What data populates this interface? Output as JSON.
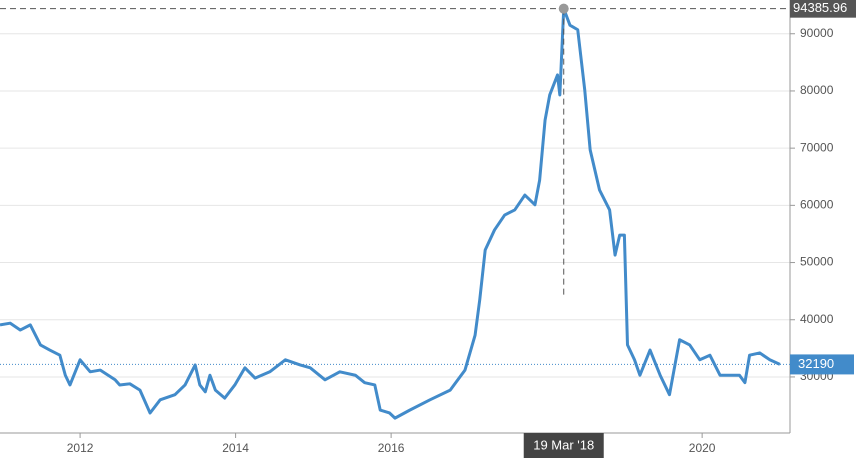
{
  "chart_data": {
    "type": "line",
    "crosshair_label": "19 Mar '18",
    "x": [
      2010.97,
      2011.1,
      2011.23,
      2011.36,
      2011.49,
      2011.61,
      2011.74,
      2011.81,
      2011.87,
      2012.0,
      2012.13,
      2012.26,
      2012.45,
      2012.51,
      2012.64,
      2012.77,
      2012.9,
      2013.03,
      2013.22,
      2013.35,
      2013.48,
      2013.54,
      2013.61,
      2013.67,
      2013.74,
      2013.86,
      2013.99,
      2014.12,
      2014.25,
      2014.44,
      2014.64,
      2014.83,
      2014.96,
      2015.15,
      2015.34,
      2015.54,
      2015.66,
      2015.79,
      2015.86,
      2015.98,
      2016.05,
      2016.24,
      2016.5,
      2016.76,
      2016.95,
      2017.08,
      2017.14,
      2017.21,
      2017.33,
      2017.46,
      2017.59,
      2017.72,
      2017.85,
      2017.91,
      2017.98,
      2018.04,
      2018.14,
      2018.17,
      2018.22,
      2018.3,
      2018.4,
      2018.49,
      2018.56,
      2018.68,
      2018.81,
      2018.88,
      2018.94,
      2019.0,
      2019.04,
      2019.13,
      2019.2,
      2019.33,
      2019.46,
      2019.58,
      2019.71,
      2019.84,
      2019.97,
      2020.1,
      2020.23,
      2020.48,
      2020.55,
      2020.61,
      2020.74,
      2020.87,
      2021.0
    ],
    "series": [
      {
        "color": "#428bca",
        "values": [
          39100,
          39400,
          38200,
          39100,
          35600,
          34700,
          33800,
          30300,
          28600,
          33000,
          30900,
          31200,
          29500,
          28600,
          28800,
          27700,
          23700,
          26000,
          26900,
          28600,
          32100,
          28600,
          27400,
          30300,
          27700,
          26300,
          28600,
          31600,
          29800,
          30900,
          33000,
          32100,
          31600,
          29500,
          30900,
          30300,
          29000,
          28600,
          24200,
          23700,
          22800,
          24200,
          26000,
          27700,
          31200,
          37300,
          43500,
          52200,
          55700,
          58300,
          59200,
          61800,
          60100,
          64400,
          74900,
          79300,
          82800,
          79300,
          94385.96,
          91500,
          90700,
          80200,
          69700,
          62700,
          59200,
          51300,
          54800,
          54800,
          35600,
          33000,
          30300,
          34700,
          30300,
          26900,
          36500,
          35600,
          33000,
          33800,
          30300,
          30300,
          29000,
          33800,
          34200,
          33000,
          32190
        ]
      }
    ],
    "xlim": [
      2010.97,
      2021.13
    ],
    "xticks": [
      2012,
      2014,
      2016,
      2020
    ],
    "ylim": [
      20200,
      95900
    ],
    "yticks": [
      30000,
      40000,
      50000,
      60000,
      70000,
      80000,
      90000
    ],
    "grid": true
  }
}
